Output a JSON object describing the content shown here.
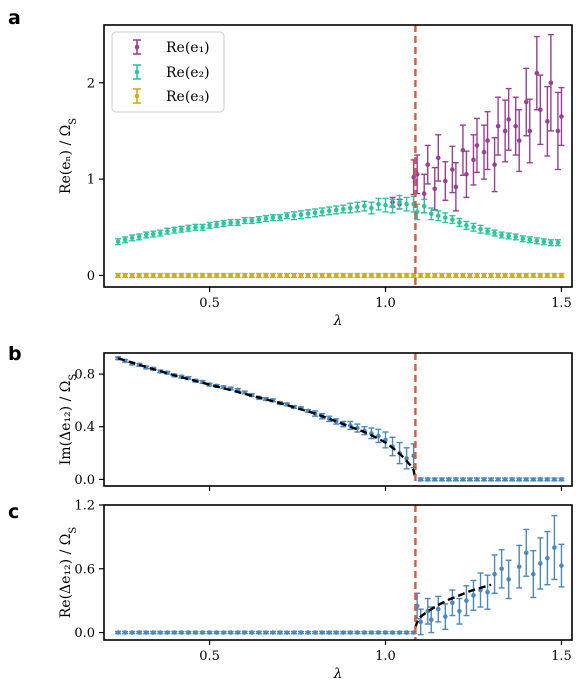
{
  "figure": {
    "panel_labels": [
      "a",
      "b",
      "c"
    ],
    "critical_line_x": 1.085,
    "critical_line_color": "#e0573a"
  },
  "chart_data": [
    {
      "panel": "a",
      "type": "scatter",
      "xlabel": "λ",
      "ylabel": "Re(e_n) / Ω_S",
      "xlim": [
        0.2,
        1.53
      ],
      "ylim": [
        -0.12,
        2.6
      ],
      "xticks": [
        0.5,
        1.0,
        1.5
      ],
      "xtick_labels": [
        "0.5",
        "1.0",
        "1.5"
      ],
      "yticks": [
        0,
        1,
        2
      ],
      "ytick_labels": [
        "0",
        "1",
        "2"
      ],
      "grid": false,
      "legend_position": "top-left",
      "series": [
        {
          "name": "Re(e₁)",
          "color": "#9b3f96",
          "x": [
            1.02,
            1.04,
            1.08,
            1.09,
            1.11,
            1.12,
            1.14,
            1.15,
            1.17,
            1.19,
            1.2,
            1.22,
            1.23,
            1.25,
            1.26,
            1.28,
            1.29,
            1.31,
            1.32,
            1.34,
            1.35,
            1.37,
            1.38,
            1.4,
            1.41,
            1.43,
            1.44,
            1.46,
            1.47,
            1.49,
            1.5
          ],
          "y": [
            0.76,
            0.74,
            1.02,
            1.05,
            0.85,
            1.15,
            0.9,
            1.22,
            0.98,
            1.1,
            0.92,
            1.3,
            1.05,
            1.2,
            1.35,
            1.28,
            1.4,
            1.15,
            1.55,
            1.5,
            1.62,
            1.55,
            1.4,
            1.8,
            1.5,
            2.1,
            1.72,
            1.6,
            2.0,
            1.5,
            1.65
          ],
          "err": [
            0.05,
            0.05,
            0.18,
            0.2,
            0.2,
            0.2,
            0.22,
            0.24,
            0.2,
            0.24,
            0.25,
            0.26,
            0.24,
            0.26,
            0.28,
            0.28,
            0.3,
            0.28,
            0.3,
            0.32,
            0.32,
            0.3,
            0.32,
            0.35,
            0.33,
            0.38,
            0.36,
            0.36,
            0.5,
            0.4,
            0.3
          ]
        },
        {
          "name": "Re(e₂)",
          "color": "#2ec4a0",
          "x": [
            0.24,
            0.26,
            0.28,
            0.3,
            0.32,
            0.34,
            0.36,
            0.38,
            0.4,
            0.42,
            0.44,
            0.46,
            0.48,
            0.5,
            0.52,
            0.54,
            0.56,
            0.58,
            0.6,
            0.62,
            0.64,
            0.66,
            0.68,
            0.7,
            0.72,
            0.74,
            0.76,
            0.78,
            0.8,
            0.82,
            0.84,
            0.86,
            0.88,
            0.9,
            0.92,
            0.94,
            0.96,
            0.98,
            1.0,
            1.02,
            1.04,
            1.06,
            1.08,
            1.09,
            1.11,
            1.13,
            1.15,
            1.17,
            1.19,
            1.21,
            1.23,
            1.25,
            1.27,
            1.29,
            1.31,
            1.33,
            1.35,
            1.37,
            1.39,
            1.41,
            1.43,
            1.45,
            1.47,
            1.49
          ],
          "y": [
            0.35,
            0.37,
            0.39,
            0.4,
            0.42,
            0.43,
            0.44,
            0.46,
            0.47,
            0.48,
            0.49,
            0.5,
            0.5,
            0.52,
            0.53,
            0.54,
            0.55,
            0.55,
            0.57,
            0.57,
            0.58,
            0.59,
            0.6,
            0.6,
            0.62,
            0.62,
            0.63,
            0.64,
            0.65,
            0.66,
            0.67,
            0.68,
            0.69,
            0.7,
            0.71,
            0.72,
            0.7,
            0.74,
            0.73,
            0.72,
            0.76,
            0.74,
            0.74,
            0.66,
            0.72,
            0.64,
            0.62,
            0.6,
            0.58,
            0.55,
            0.52,
            0.5,
            0.48,
            0.46,
            0.44,
            0.42,
            0.41,
            0.4,
            0.38,
            0.37,
            0.36,
            0.35,
            0.34,
            0.34
          ],
          "err": [
            0.03,
            0.03,
            0.03,
            0.03,
            0.03,
            0.03,
            0.03,
            0.03,
            0.03,
            0.03,
            0.03,
            0.03,
            0.03,
            0.03,
            0.03,
            0.03,
            0.03,
            0.03,
            0.03,
            0.03,
            0.03,
            0.03,
            0.03,
            0.03,
            0.03,
            0.04,
            0.04,
            0.04,
            0.04,
            0.04,
            0.04,
            0.04,
            0.04,
            0.05,
            0.05,
            0.05,
            0.06,
            0.06,
            0.07,
            0.07,
            0.07,
            0.07,
            0.08,
            0.08,
            0.07,
            0.06,
            0.05,
            0.05,
            0.04,
            0.04,
            0.04,
            0.04,
            0.04,
            0.03,
            0.03,
            0.03,
            0.03,
            0.03,
            0.03,
            0.03,
            0.03,
            0.03,
            0.03,
            0.03
          ]
        },
        {
          "name": "Re(e₃)",
          "color": "#d4ac14",
          "x": [
            0.24,
            0.26,
            0.28,
            0.3,
            0.32,
            0.34,
            0.36,
            0.38,
            0.4,
            0.42,
            0.44,
            0.46,
            0.48,
            0.5,
            0.52,
            0.54,
            0.56,
            0.58,
            0.6,
            0.62,
            0.64,
            0.66,
            0.68,
            0.7,
            0.72,
            0.74,
            0.76,
            0.78,
            0.8,
            0.82,
            0.84,
            0.86,
            0.88,
            0.9,
            0.92,
            0.94,
            0.96,
            0.98,
            1.0,
            1.02,
            1.04,
            1.06,
            1.08,
            1.1,
            1.12,
            1.14,
            1.16,
            1.18,
            1.2,
            1.22,
            1.24,
            1.26,
            1.28,
            1.3,
            1.32,
            1.34,
            1.36,
            1.38,
            1.4,
            1.42,
            1.44,
            1.46,
            1.48,
            1.5
          ],
          "y": [
            0,
            0,
            0,
            0,
            0,
            0,
            0,
            0,
            0,
            0,
            0,
            0,
            0,
            0,
            0,
            0,
            0,
            0,
            0,
            0,
            0,
            0,
            0,
            0,
            0,
            0,
            0,
            0,
            0,
            0,
            0,
            0,
            0,
            0,
            0,
            0,
            0,
            0,
            0,
            0,
            0,
            0,
            0,
            0,
            0,
            0,
            0,
            0,
            0,
            0,
            0,
            0,
            0,
            0,
            0,
            0,
            0,
            0,
            0,
            0,
            0,
            0,
            0,
            0
          ],
          "err": [
            0.02,
            0.02,
            0.02,
            0.02,
            0.02,
            0.02,
            0.02,
            0.02,
            0.02,
            0.02,
            0.02,
            0.02,
            0.02,
            0.02,
            0.02,
            0.02,
            0.02,
            0.02,
            0.02,
            0.02,
            0.02,
            0.02,
            0.02,
            0.02,
            0.02,
            0.02,
            0.02,
            0.02,
            0.02,
            0.02,
            0.02,
            0.02,
            0.02,
            0.02,
            0.02,
            0.02,
            0.02,
            0.02,
            0.02,
            0.02,
            0.02,
            0.02,
            0.02,
            0.02,
            0.02,
            0.02,
            0.02,
            0.02,
            0.02,
            0.02,
            0.02,
            0.02,
            0.02,
            0.02,
            0.02,
            0.02,
            0.02,
            0.02,
            0.02,
            0.02,
            0.02,
            0.02,
            0.02,
            0.02
          ]
        }
      ]
    },
    {
      "panel": "b",
      "type": "scatter",
      "xlabel": "",
      "ylabel": "Im(Δe₁₂) / Ω_S",
      "xlim": [
        0.2,
        1.53
      ],
      "ylim": [
        -0.05,
        0.96
      ],
      "xticks": [
        0.5,
        1.0,
        1.5
      ],
      "xtick_labels": [
        "",
        "",
        ""
      ],
      "yticks": [
        0.0,
        0.4,
        0.8
      ],
      "ytick_labels": [
        "0.0",
        "0.4",
        "0.8"
      ],
      "grid": false,
      "series": [
        {
          "name": "",
          "color": "#4a88c2",
          "x": [
            0.24,
            0.26,
            0.28,
            0.3,
            0.32,
            0.34,
            0.36,
            0.38,
            0.4,
            0.42,
            0.44,
            0.46,
            0.48,
            0.5,
            0.52,
            0.54,
            0.56,
            0.58,
            0.6,
            0.62,
            0.64,
            0.66,
            0.68,
            0.7,
            0.72,
            0.74,
            0.76,
            0.78,
            0.8,
            0.82,
            0.84,
            0.86,
            0.88,
            0.9,
            0.92,
            0.94,
            0.96,
            0.98,
            1.0,
            1.02,
            1.04,
            1.06,
            1.08,
            1.1,
            1.12,
            1.14,
            1.16,
            1.18,
            1.2,
            1.22,
            1.24,
            1.26,
            1.28,
            1.3,
            1.32,
            1.34,
            1.36,
            1.38,
            1.4,
            1.42,
            1.44,
            1.46,
            1.48,
            1.5
          ],
          "y": [
            0.92,
            0.9,
            0.88,
            0.87,
            0.85,
            0.84,
            0.82,
            0.81,
            0.79,
            0.78,
            0.77,
            0.75,
            0.74,
            0.72,
            0.71,
            0.7,
            0.69,
            0.68,
            0.66,
            0.64,
            0.62,
            0.61,
            0.6,
            0.58,
            0.57,
            0.55,
            0.54,
            0.52,
            0.5,
            0.48,
            0.46,
            0.44,
            0.42,
            0.41,
            0.39,
            0.37,
            0.35,
            0.33,
            0.3,
            0.25,
            0.2,
            0.16,
            0.18,
            0,
            0,
            0,
            0,
            0,
            0,
            0,
            0,
            0,
            0,
            0,
            0,
            0,
            0,
            0,
            0,
            0,
            0,
            0,
            0,
            0
          ],
          "err": [
            0.01,
            0.01,
            0.01,
            0.01,
            0.01,
            0.01,
            0.01,
            0.01,
            0.01,
            0.01,
            0.01,
            0.01,
            0.01,
            0.01,
            0.01,
            0.01,
            0.01,
            0.01,
            0.01,
            0.01,
            0.01,
            0.01,
            0.01,
            0.01,
            0.01,
            0.01,
            0.01,
            0.01,
            0.02,
            0.02,
            0.02,
            0.02,
            0.02,
            0.03,
            0.03,
            0.03,
            0.04,
            0.05,
            0.06,
            0.07,
            0.08,
            0.08,
            0.09,
            0.01,
            0.01,
            0.01,
            0.01,
            0.01,
            0.01,
            0.01,
            0.01,
            0.01,
            0.01,
            0.01,
            0.01,
            0.01,
            0.01,
            0.01,
            0.01,
            0.01,
            0.01,
            0.01,
            0.01,
            0.01
          ]
        },
        {
          "name": "",
          "style": "dashed",
          "color": "#000000",
          "x": [
            0.24,
            0.3,
            0.4,
            0.5,
            0.6,
            0.7,
            0.8,
            0.9,
            0.95,
            1.0,
            1.03,
            1.05,
            1.07,
            1.08,
            1.085
          ],
          "y": [
            0.92,
            0.87,
            0.79,
            0.72,
            0.65,
            0.58,
            0.5,
            0.4,
            0.35,
            0.28,
            0.22,
            0.17,
            0.11,
            0.07,
            0.0
          ]
        }
      ]
    },
    {
      "panel": "c",
      "type": "scatter",
      "xlabel": "λ",
      "ylabel": "Re(Δe₁₂) / Ω_S",
      "xlim": [
        0.2,
        1.53
      ],
      "ylim": [
        -0.07,
        1.2
      ],
      "xticks": [
        0.5,
        1.0,
        1.5
      ],
      "xtick_labels": [
        "0.5",
        "1.0",
        "1.5"
      ],
      "yticks": [
        0.0,
        0.6,
        1.2
      ],
      "ytick_labels": [
        "0.0",
        "0.6",
        "1.2"
      ],
      "grid": false,
      "series": [
        {
          "name": "",
          "color": "#4a88c2",
          "x": [
            0.24,
            0.26,
            0.28,
            0.3,
            0.32,
            0.34,
            0.36,
            0.38,
            0.4,
            0.42,
            0.44,
            0.46,
            0.48,
            0.5,
            0.52,
            0.54,
            0.56,
            0.58,
            0.6,
            0.62,
            0.64,
            0.66,
            0.68,
            0.7,
            0.72,
            0.74,
            0.76,
            0.78,
            0.8,
            0.82,
            0.84,
            0.86,
            0.88,
            0.9,
            0.92,
            0.94,
            0.96,
            0.98,
            1.0,
            1.02,
            1.04,
            1.06,
            1.08,
            1.09,
            1.1,
            1.12,
            1.13,
            1.15,
            1.17,
            1.19,
            1.21,
            1.23,
            1.25,
            1.27,
            1.29,
            1.31,
            1.33,
            1.35,
            1.38,
            1.4,
            1.42,
            1.44,
            1.46,
            1.48,
            1.5
          ],
          "y": [
            0,
            0,
            0,
            0,
            0,
            0,
            0,
            0,
            0,
            0,
            0,
            0,
            0,
            0,
            0,
            0,
            0,
            0,
            0,
            0,
            0,
            0,
            0,
            0,
            0,
            0,
            0,
            0,
            0,
            0,
            0,
            0,
            0,
            0,
            0,
            0,
            0,
            0,
            0,
            0,
            0,
            0,
            0,
            0.25,
            0.1,
            0.2,
            0.12,
            0.22,
            0.15,
            0.28,
            0.2,
            0.3,
            0.35,
            0.4,
            0.38,
            0.55,
            0.6,
            0.5,
            0.62,
            0.75,
            0.55,
            0.65,
            0.7,
            0.8,
            0.63
          ],
          "err": [
            0.01,
            0.01,
            0.01,
            0.01,
            0.01,
            0.01,
            0.01,
            0.01,
            0.01,
            0.01,
            0.01,
            0.01,
            0.01,
            0.01,
            0.01,
            0.01,
            0.01,
            0.01,
            0.01,
            0.01,
            0.01,
            0.01,
            0.01,
            0.01,
            0.01,
            0.01,
            0.01,
            0.01,
            0.01,
            0.01,
            0.01,
            0.01,
            0.01,
            0.01,
            0.01,
            0.01,
            0.01,
            0.01,
            0.01,
            0.01,
            0.01,
            0.01,
            0.01,
            0.12,
            0.12,
            0.12,
            0.12,
            0.12,
            0.12,
            0.12,
            0.12,
            0.14,
            0.14,
            0.16,
            0.16,
            0.18,
            0.18,
            0.18,
            0.2,
            0.22,
            0.22,
            0.24,
            0.25,
            0.3,
            0.2
          ]
        },
        {
          "name": "",
          "style": "dashed",
          "color": "#000000",
          "x": [
            1.085,
            1.09,
            1.1,
            1.12,
            1.15,
            1.18,
            1.21,
            1.24,
            1.27,
            1.3
          ],
          "y": [
            0.05,
            0.1,
            0.15,
            0.2,
            0.26,
            0.31,
            0.35,
            0.39,
            0.42,
            0.45
          ]
        }
      ]
    }
  ]
}
